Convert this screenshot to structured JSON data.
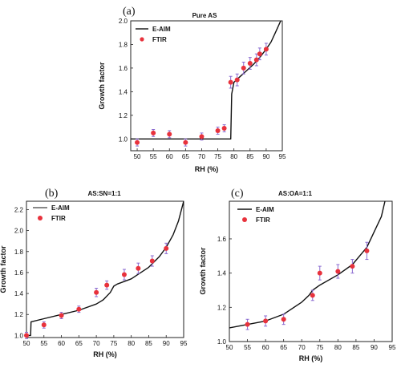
{
  "colors": {
    "model_line": "#111111",
    "marker": "#e8323c",
    "errorbar": "#8a6ad0",
    "axis": "#222222"
  },
  "chart_data": [
    {
      "type": "line",
      "panel_label": "(a)",
      "title": "Pure AS",
      "xlabel": "RH (%)",
      "ylabel": "Growth factor",
      "xlim": [
        48,
        95
      ],
      "ylim": [
        0.9,
        2.0
      ],
      "xticks": [
        50,
        55,
        60,
        65,
        70,
        75,
        80,
        85,
        90,
        95
      ],
      "yticks": [
        1.0,
        1.2,
        1.4,
        1.6,
        1.8,
        2.0
      ],
      "ytick_decimals": 1,
      "legend_position": "top-left",
      "series": [
        {
          "name": "E-AIM",
          "kind": "line",
          "x": [
            48,
            79.0,
            79.3,
            80,
            82,
            84,
            86,
            88,
            90,
            91.5,
            93,
            94.5
          ],
          "y": [
            1.0,
            1.0,
            1.38,
            1.48,
            1.53,
            1.58,
            1.63,
            1.69,
            1.76,
            1.82,
            1.91,
            2.0
          ]
        },
        {
          "name": "FTIR",
          "kind": "scatter",
          "x": [
            50,
            55,
            60,
            65,
            70,
            75,
            77,
            79,
            81,
            83,
            85,
            87,
            88,
            90
          ],
          "y": [
            0.97,
            1.05,
            1.04,
            0.97,
            1.02,
            1.07,
            1.09,
            1.48,
            1.5,
            1.6,
            1.64,
            1.67,
            1.72,
            1.76
          ],
          "err": [
            0.03,
            0.03,
            0.03,
            0.03,
            0.03,
            0.03,
            0.03,
            0.05,
            0.05,
            0.05,
            0.05,
            0.05,
            0.05,
            0.05
          ]
        }
      ]
    },
    {
      "type": "line",
      "panel_label": "(b)",
      "title": "AS:SN=1:1",
      "xlabel": "RH (%)",
      "ylabel": "Growth factor",
      "xlim": [
        50,
        95
      ],
      "ylim": [
        0.98,
        2.28
      ],
      "xticks": [
        50,
        55,
        60,
        65,
        70,
        75,
        80,
        85,
        90,
        95
      ],
      "yticks": [
        1.0,
        1.2,
        1.4,
        1.6,
        1.8,
        2.0,
        2.2
      ],
      "ytick_decimals": 1,
      "legend_position": "top-left",
      "series": [
        {
          "name": "E-AIM",
          "kind": "line",
          "x": [
            50,
            51.2,
            51.3,
            55,
            60,
            65,
            70,
            72,
            74,
            75,
            76,
            80,
            85,
            88,
            90,
            92,
            93.5,
            95
          ],
          "y": [
            1.0,
            1.0,
            1.13,
            1.16,
            1.2,
            1.24,
            1.3,
            1.34,
            1.41,
            1.47,
            1.49,
            1.54,
            1.65,
            1.75,
            1.84,
            1.96,
            2.09,
            2.28
          ]
        },
        {
          "name": "FTIR",
          "kind": "scatter",
          "x": [
            50,
            55,
            60,
            65,
            70,
            73,
            78,
            82,
            86,
            90
          ],
          "y": [
            1.0,
            1.1,
            1.19,
            1.25,
            1.41,
            1.48,
            1.58,
            1.64,
            1.71,
            1.83
          ],
          "err": [
            0.03,
            0.03,
            0.03,
            0.03,
            0.04,
            0.04,
            0.05,
            0.05,
            0.05,
            0.05
          ]
        }
      ]
    },
    {
      "type": "line",
      "panel_label": "(c)",
      "title": "AS:OA=1:1",
      "xlabel": "RH (%)",
      "ylabel": "Growth factor",
      "xlim": [
        50,
        95
      ],
      "ylim": [
        1.0,
        1.82
      ],
      "xticks": [
        50,
        55,
        60,
        65,
        70,
        75,
        80,
        85,
        90,
        95
      ],
      "yticks": [
        1.0,
        1.2,
        1.4,
        1.6
      ],
      "ytick_decimals": 1,
      "legend_position": "top-left",
      "series": [
        {
          "name": "E-AIM",
          "kind": "line",
          "x": [
            50,
            55,
            60,
            65,
            70,
            72,
            73,
            75,
            80,
            84,
            88,
            90,
            92,
            93
          ],
          "y": [
            1.08,
            1.1,
            1.12,
            1.16,
            1.23,
            1.27,
            1.3,
            1.33,
            1.39,
            1.45,
            1.55,
            1.64,
            1.73,
            1.82
          ]
        },
        {
          "name": "FTIR",
          "kind": "scatter",
          "x": [
            55,
            60,
            65,
            73,
            75,
            80,
            84,
            88
          ],
          "y": [
            1.1,
            1.12,
            1.13,
            1.27,
            1.4,
            1.41,
            1.44,
            1.53
          ],
          "err": [
            0.03,
            0.03,
            0.03,
            0.03,
            0.04,
            0.04,
            0.04,
            0.05
          ]
        }
      ]
    }
  ]
}
